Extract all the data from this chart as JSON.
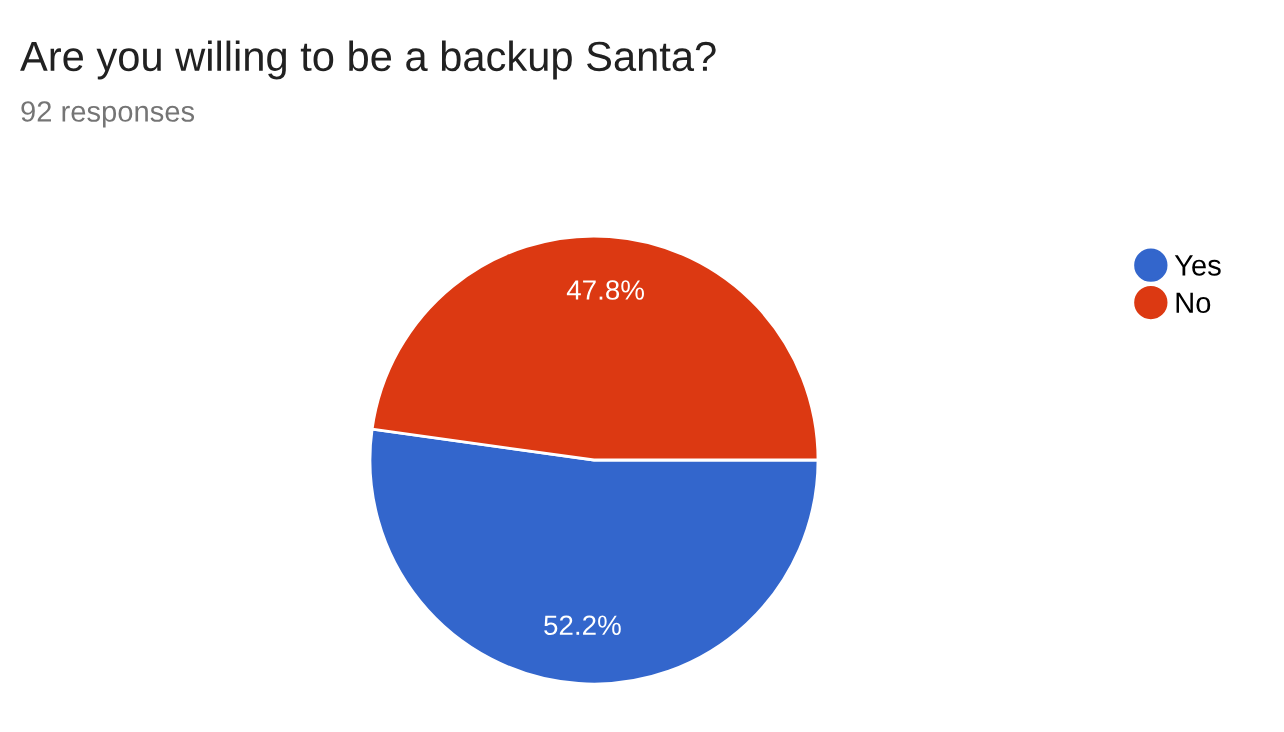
{
  "chart_data": {
    "type": "pie",
    "title": "Are you willing to be a backup Santa?",
    "subtitle": "92 responses",
    "categories": [
      "Yes",
      "No"
    ],
    "values": [
      52.2,
      47.8
    ],
    "colors": [
      "#3366cc",
      "#dc3912"
    ],
    "value_labels": [
      "52.2%",
      "47.8%"
    ],
    "legend": "right"
  }
}
